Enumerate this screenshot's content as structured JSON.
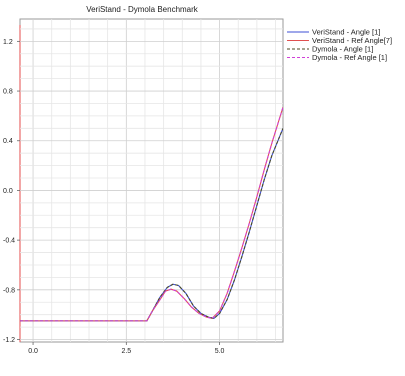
{
  "chart_data": {
    "type": "line",
    "title": "VeriStand - Dymola Benchmark",
    "xlabel": "",
    "ylabel": "",
    "xlim": [
      -0.35,
      6.7
    ],
    "ylim": [
      -1.22,
      1.38
    ],
    "x_ticks": [
      0.0,
      2.5,
      5.0
    ],
    "x_tick_labels": [
      "0.0",
      "2.5",
      "5.0"
    ],
    "y_ticks": [
      1.2,
      0.8,
      0.4,
      0.0,
      -0.4,
      -0.8,
      -1.2
    ],
    "y_tick_labels": [
      "1.2",
      "0.8",
      "0.4",
      "0.0",
      "-0.4",
      "-0.8",
      "-1.2"
    ],
    "grid": true,
    "legend_position": "top-right",
    "series": [
      {
        "name": "VeriStand - Angle [1]",
        "color": "#3d4fd6",
        "dash": "solid",
        "x": [
          -0.35,
          2.0,
          3.05,
          3.2,
          3.4,
          3.6,
          3.75,
          3.9,
          4.1,
          4.3,
          4.5,
          4.7,
          4.85,
          5.0,
          5.2,
          5.4,
          5.6,
          5.8,
          6.0,
          6.2,
          6.4,
          6.7
        ],
        "y": [
          -1.05,
          -1.05,
          -1.05,
          -0.97,
          -0.86,
          -0.78,
          -0.755,
          -0.765,
          -0.83,
          -0.93,
          -0.99,
          -1.02,
          -1.03,
          -0.99,
          -0.88,
          -0.72,
          -0.53,
          -0.33,
          -0.12,
          0.09,
          0.28,
          0.5
        ]
      },
      {
        "name": "VeriStand - Ref Angle[7]",
        "color": "#e05050",
        "dash": "solid",
        "x": [
          -0.35,
          2.0,
          3.05,
          3.2,
          3.4,
          3.55,
          3.7,
          3.85,
          4.05,
          4.25,
          4.45,
          4.65,
          4.8,
          5.0,
          5.2,
          5.4,
          5.6,
          5.8,
          6.0,
          6.2,
          6.4,
          6.7
        ],
        "y": [
          -1.05,
          -1.05,
          -1.05,
          -0.97,
          -0.88,
          -0.81,
          -0.795,
          -0.81,
          -0.87,
          -0.94,
          -0.99,
          -1.02,
          -1.03,
          -0.97,
          -0.83,
          -0.65,
          -0.46,
          -0.26,
          -0.05,
          0.17,
          0.38,
          0.67
        ]
      },
      {
        "name": "Dymola - Angle [1]",
        "color": "#4a4a20",
        "dash": "dashed",
        "x": [
          -0.35,
          2.0,
          3.05,
          3.2,
          3.4,
          3.6,
          3.75,
          3.9,
          4.1,
          4.3,
          4.5,
          4.7,
          4.85,
          5.0,
          5.2,
          5.4,
          5.6,
          5.8,
          6.0,
          6.2,
          6.4,
          6.7
        ],
        "y": [
          -1.05,
          -1.05,
          -1.05,
          -0.97,
          -0.86,
          -0.78,
          -0.755,
          -0.765,
          -0.83,
          -0.93,
          -0.99,
          -1.02,
          -1.03,
          -0.99,
          -0.88,
          -0.72,
          -0.53,
          -0.33,
          -0.12,
          0.09,
          0.28,
          0.5
        ]
      },
      {
        "name": "Dymola - Ref Angle [1]",
        "color": "#d040d8",
        "dash": "dashed",
        "x": [
          -0.35,
          2.0,
          3.05,
          3.2,
          3.4,
          3.55,
          3.7,
          3.85,
          4.05,
          4.25,
          4.45,
          4.65,
          4.8,
          5.0,
          5.2,
          5.4,
          5.6,
          5.8,
          6.0,
          6.2,
          6.4,
          6.7
        ],
        "y": [
          -1.05,
          -1.05,
          -1.05,
          -0.97,
          -0.88,
          -0.81,
          -0.795,
          -0.81,
          -0.87,
          -0.94,
          -0.99,
          -1.02,
          -1.03,
          -0.97,
          -0.83,
          -0.65,
          -0.46,
          -0.26,
          -0.05,
          0.17,
          0.38,
          0.67
        ]
      }
    ]
  }
}
